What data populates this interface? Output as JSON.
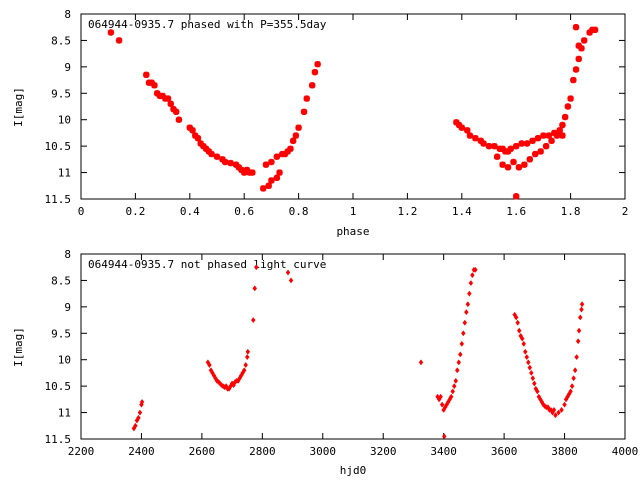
{
  "chart_data": [
    {
      "type": "scatter",
      "title": "064944-0935.7 phased with P=355.5day",
      "xlabel": "phase",
      "ylabel": "I[mag]",
      "xlim": [
        0,
        2
      ],
      "ylim": [
        11.5,
        8
      ],
      "y_inverted": true,
      "xticks": [
        0,
        0.2,
        0.4,
        0.6,
        0.8,
        1,
        1.2,
        1.4,
        1.6,
        1.8,
        2
      ],
      "yticks": [
        8,
        8.5,
        9,
        9.5,
        10,
        10.5,
        11,
        11.5
      ],
      "xtick_labels": [
        "0",
        "0.2",
        "0.4",
        "0.6",
        "0.8",
        "1",
        "1.2",
        "1.4",
        "1.6",
        "1.8",
        "2"
      ],
      "ytick_labels": [
        "8",
        "8.5",
        "9",
        "9.5",
        "10",
        "10.5",
        "11",
        "11.5"
      ],
      "marker": "star",
      "color": "#ff0000",
      "grid": false,
      "points": [
        [
          0.11,
          8.35
        ],
        [
          0.14,
          8.5
        ],
        [
          0.24,
          9.15
        ],
        [
          0.25,
          9.3
        ],
        [
          0.26,
          9.3
        ],
        [
          0.27,
          9.35
        ],
        [
          0.28,
          9.5
        ],
        [
          0.29,
          9.55
        ],
        [
          0.3,
          9.55
        ],
        [
          0.31,
          9.6
        ],
        [
          0.32,
          9.6
        ],
        [
          0.33,
          9.7
        ],
        [
          0.34,
          9.8
        ],
        [
          0.35,
          9.85
        ],
        [
          0.36,
          10.0
        ],
        [
          0.4,
          10.15
        ],
        [
          0.41,
          10.2
        ],
        [
          0.42,
          10.3
        ],
        [
          0.43,
          10.35
        ],
        [
          0.44,
          10.45
        ],
        [
          0.45,
          10.5
        ],
        [
          0.46,
          10.55
        ],
        [
          0.47,
          10.6
        ],
        [
          0.48,
          10.65
        ],
        [
          0.5,
          10.7
        ],
        [
          0.52,
          10.75
        ],
        [
          0.53,
          10.8
        ],
        [
          0.55,
          10.82
        ],
        [
          0.57,
          10.85
        ],
        [
          0.58,
          10.9
        ],
        [
          0.59,
          10.95
        ],
        [
          0.6,
          11.0
        ],
        [
          0.61,
          10.95
        ],
        [
          0.62,
          11.0
        ],
        [
          0.63,
          11.0
        ],
        [
          0.67,
          11.3
        ],
        [
          0.69,
          11.25
        ],
        [
          0.68,
          10.85
        ],
        [
          0.7,
          10.8
        ],
        [
          0.7,
          11.15
        ],
        [
          0.72,
          11.1
        ],
        [
          0.73,
          11.0
        ],
        [
          0.72,
          10.7
        ],
        [
          0.74,
          10.65
        ],
        [
          0.75,
          10.65
        ],
        [
          0.76,
          10.6
        ],
        [
          0.77,
          10.55
        ],
        [
          0.78,
          10.4
        ],
        [
          0.79,
          10.3
        ],
        [
          0.8,
          10.15
        ],
        [
          0.82,
          9.85
        ],
        [
          0.83,
          9.6
        ],
        [
          0.85,
          9.35
        ],
        [
          0.86,
          9.1
        ],
        [
          0.87,
          8.95
        ],
        [
          1.38,
          10.05
        ],
        [
          1.39,
          10.1
        ],
        [
          1.4,
          10.15
        ],
        [
          1.42,
          10.2
        ],
        [
          1.43,
          10.3
        ],
        [
          1.45,
          10.35
        ],
        [
          1.47,
          10.4
        ],
        [
          1.48,
          10.45
        ],
        [
          1.5,
          10.5
        ],
        [
          1.52,
          10.5
        ],
        [
          1.54,
          10.55
        ],
        [
          1.55,
          10.55
        ],
        [
          1.56,
          10.6
        ],
        [
          1.57,
          10.6
        ],
        [
          1.58,
          10.55
        ],
        [
          1.6,
          10.5
        ],
        [
          1.62,
          10.45
        ],
        [
          1.64,
          10.45
        ],
        [
          1.66,
          10.4
        ],
        [
          1.68,
          10.35
        ],
        [
          1.7,
          10.3
        ],
        [
          1.72,
          10.3
        ],
        [
          1.74,
          10.25
        ],
        [
          1.76,
          10.2
        ],
        [
          1.77,
          10.1
        ],
        [
          1.78,
          9.95
        ],
        [
          1.79,
          9.75
        ],
        [
          1.8,
          9.6
        ],
        [
          1.81,
          9.25
        ],
        [
          1.82,
          9.05
        ],
        [
          1.83,
          8.85
        ],
        [
          1.84,
          8.65
        ],
        [
          1.85,
          8.5
        ],
        [
          1.87,
          8.35
        ],
        [
          1.88,
          8.3
        ],
        [
          1.89,
          8.3
        ],
        [
          1.82,
          8.25
        ],
        [
          1.83,
          8.6
        ],
        [
          1.53,
          10.7
        ],
        [
          1.55,
          10.85
        ],
        [
          1.57,
          10.9
        ],
        [
          1.59,
          10.8
        ],
        [
          1.61,
          10.9
        ],
        [
          1.63,
          10.85
        ],
        [
          1.65,
          10.75
        ],
        [
          1.67,
          10.65
        ],
        [
          1.69,
          10.6
        ],
        [
          1.71,
          10.5
        ],
        [
          1.73,
          10.4
        ],
        [
          1.75,
          10.3
        ],
        [
          1.77,
          10.3
        ],
        [
          1.6,
          11.45
        ]
      ]
    },
    {
      "type": "scatter",
      "title": "064944-0935.7 not phased light curve",
      "xlabel": "hjd0",
      "ylabel": "I[mag]",
      "xlim": [
        2200,
        4000
      ],
      "ylim": [
        11.5,
        8
      ],
      "y_inverted": true,
      "xticks": [
        2200,
        2400,
        2600,
        2800,
        3000,
        3200,
        3400,
        3600,
        3800,
        4000
      ],
      "yticks": [
        8,
        8.5,
        9,
        9.5,
        10,
        10.5,
        11,
        11.5
      ],
      "xtick_labels": [
        "2200",
        "2400",
        "2600",
        "2800",
        "3000",
        "3200",
        "3400",
        "3600",
        "3800",
        "4000"
      ],
      "ytick_labels": [
        "8",
        "8.5",
        "9",
        "9.5",
        "10",
        "10.5",
        "11",
        "11.5"
      ],
      "marker": "diamond",
      "color": "#ff0000",
      "grid": false,
      "points": [
        [
          2375,
          11.3
        ],
        [
          2380,
          11.25
        ],
        [
          2385,
          11.15
        ],
        [
          2390,
          11.1
        ],
        [
          2395,
          11.0
        ],
        [
          2400,
          10.85
        ],
        [
          2402,
          10.8
        ],
        [
          2620,
          10.05
        ],
        [
          2625,
          10.1
        ],
        [
          2630,
          10.2
        ],
        [
          2635,
          10.25
        ],
        [
          2640,
          10.3
        ],
        [
          2645,
          10.35
        ],
        [
          2650,
          10.4
        ],
        [
          2655,
          10.42
        ],
        [
          2660,
          10.45
        ],
        [
          2665,
          10.48
        ],
        [
          2670,
          10.5
        ],
        [
          2675,
          10.52
        ],
        [
          2680,
          10.5
        ],
        [
          2685,
          10.55
        ],
        [
          2690,
          10.55
        ],
        [
          2695,
          10.5
        ],
        [
          2700,
          10.45
        ],
        [
          2705,
          10.48
        ],
        [
          2710,
          10.42
        ],
        [
          2715,
          10.4
        ],
        [
          2720,
          10.4
        ],
        [
          2725,
          10.35
        ],
        [
          2730,
          10.3
        ],
        [
          2735,
          10.25
        ],
        [
          2740,
          10.2
        ],
        [
          2745,
          10.1
        ],
        [
          2750,
          9.95
        ],
        [
          2752,
          9.85
        ],
        [
          2770,
          9.25
        ],
        [
          2775,
          8.65
        ],
        [
          2780,
          8.25
        ],
        [
          2885,
          8.35
        ],
        [
          2895,
          8.5
        ],
        [
          3325,
          10.05
        ],
        [
          3380,
          10.7
        ],
        [
          3385,
          10.75
        ],
        [
          3390,
          10.7
        ],
        [
          3395,
          10.85
        ],
        [
          3400,
          10.95
        ],
        [
          3402,
          11.45
        ],
        [
          3405,
          10.9
        ],
        [
          3410,
          10.85
        ],
        [
          3415,
          10.8
        ],
        [
          3420,
          10.75
        ],
        [
          3425,
          10.7
        ],
        [
          3430,
          10.6
        ],
        [
          3435,
          10.5
        ],
        [
          3440,
          10.4
        ],
        [
          3445,
          10.2
        ],
        [
          3450,
          10.05
        ],
        [
          3455,
          9.9
        ],
        [
          3460,
          9.7
        ],
        [
          3465,
          9.5
        ],
        [
          3470,
          9.3
        ],
        [
          3475,
          9.1
        ],
        [
          3480,
          8.95
        ],
        [
          3485,
          8.75
        ],
        [
          3490,
          8.55
        ],
        [
          3495,
          8.4
        ],
        [
          3500,
          8.3
        ],
        [
          3505,
          8.3
        ],
        [
          3635,
          9.15
        ],
        [
          3640,
          9.2
        ],
        [
          3645,
          9.3
        ],
        [
          3650,
          9.45
        ],
        [
          3655,
          9.55
        ],
        [
          3660,
          9.6
        ],
        [
          3665,
          9.7
        ],
        [
          3670,
          9.85
        ],
        [
          3675,
          9.95
        ],
        [
          3680,
          10.05
        ],
        [
          3685,
          10.15
        ],
        [
          3690,
          10.25
        ],
        [
          3695,
          10.35
        ],
        [
          3700,
          10.45
        ],
        [
          3705,
          10.55
        ],
        [
          3710,
          10.6
        ],
        [
          3715,
          10.7
        ],
        [
          3720,
          10.75
        ],
        [
          3725,
          10.8
        ],
        [
          3730,
          10.85
        ],
        [
          3735,
          10.88
        ],
        [
          3740,
          10.9
        ],
        [
          3745,
          10.9
        ],
        [
          3750,
          10.95
        ],
        [
          3755,
          10.95
        ],
        [
          3760,
          11.0
        ],
        [
          3765,
          10.95
        ],
        [
          3770,
          11.05
        ],
        [
          3780,
          11.0
        ],
        [
          3790,
          10.95
        ],
        [
          3800,
          10.85
        ],
        [
          3805,
          10.75
        ],
        [
          3810,
          10.7
        ],
        [
          3815,
          10.65
        ],
        [
          3820,
          10.6
        ],
        [
          3825,
          10.5
        ],
        [
          3830,
          10.35
        ],
        [
          3835,
          10.2
        ],
        [
          3840,
          9.95
        ],
        [
          3845,
          9.65
        ],
        [
          3848,
          9.45
        ],
        [
          3852,
          9.2
        ],
        [
          3856,
          9.05
        ],
        [
          3858,
          8.95
        ]
      ]
    }
  ]
}
